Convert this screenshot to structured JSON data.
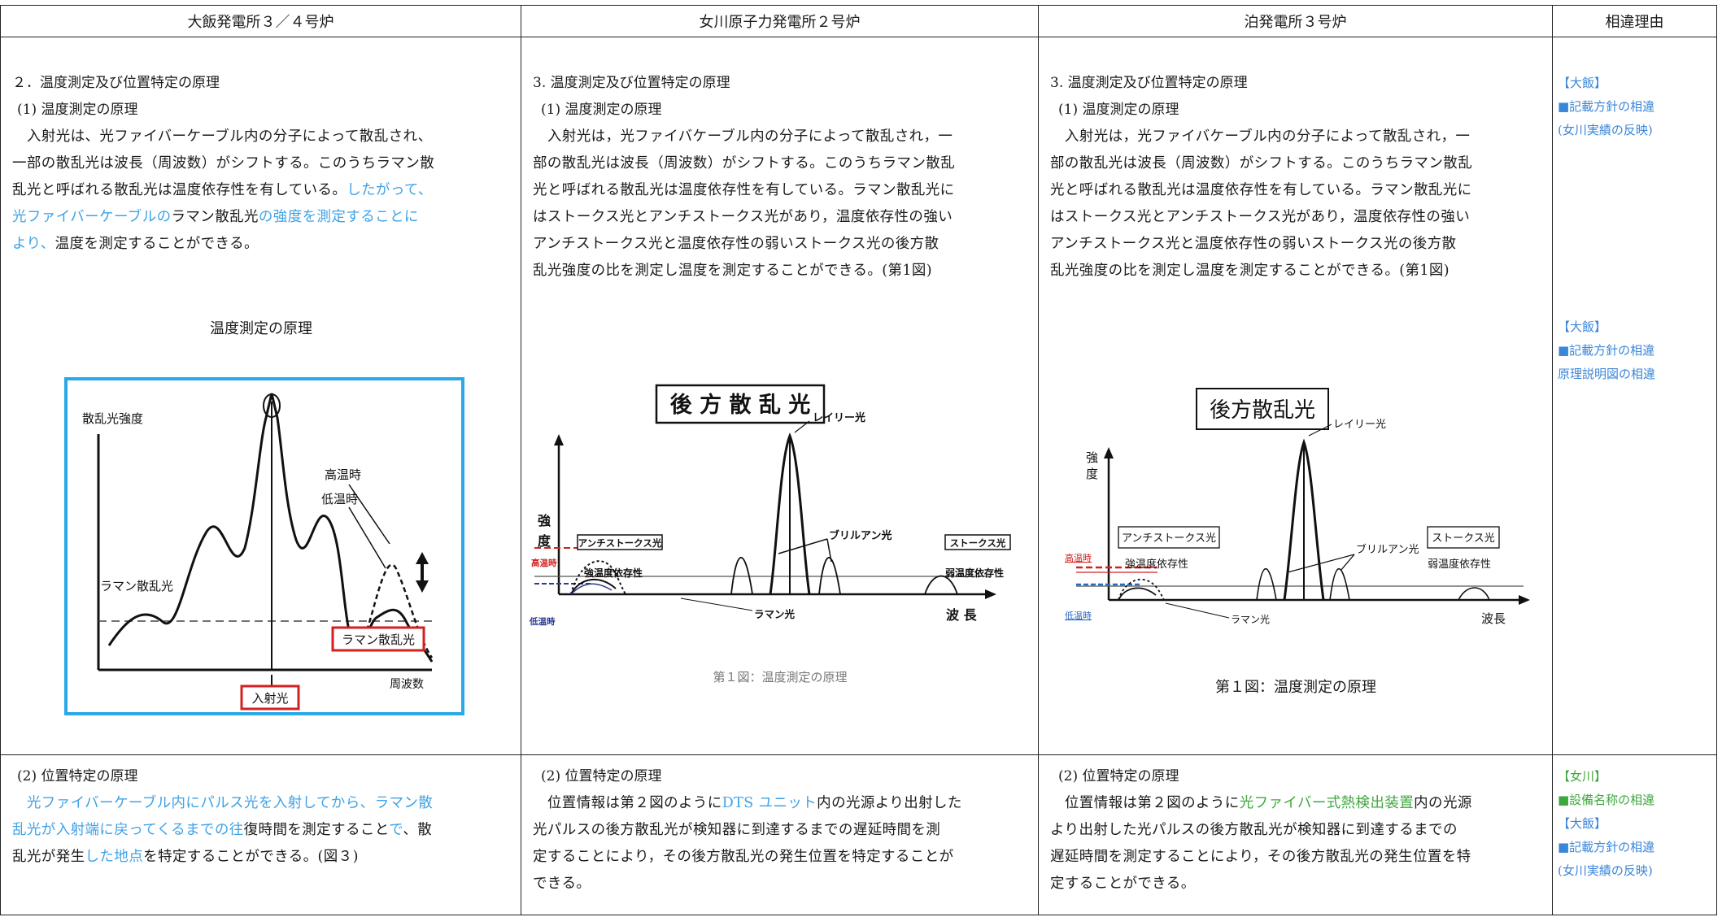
{
  "header": {
    "col1": "大飯発電所３／４号炉",
    "col2": "女川原子力発電所２号炉",
    "col3": "泊発電所３号炉",
    "col4": "相違理由"
  },
  "ohi": {
    "section": "２．温度測定及び位置特定の原理",
    "sub1": "(1) 温度測定の原理",
    "p1_lines": [
      "　入射光は、光ファイバーケーブル内の分子によって散乱され、",
      "一部の散乱光は波長（周波数）がシフトする。このうちラマン散",
      "乱光と呼ばれる散乱光は温度依存性を有している。"
    ],
    "p1_blue_a": "したがって、",
    "p1_blue_b": "光ファイバーケーブルの",
    "p1_black_b": "ラマン散乱光",
    "p1_blue_c": "の強度を測定することに",
    "p1_blue_d": "より、",
    "p1_black_d": "温度を測定することができる。",
    "fig_title": "温度測定の原理",
    "fig_labels": {
      "yaxis": "散乱光強度",
      "high": "高温時",
      "low": "低温時",
      "raman_left": "ラマン散乱光",
      "raman_box": "ラマン散乱光",
      "xaxis": "周波数",
      "incident": "入射光"
    },
    "sub2": "(2) 位置特定の原理",
    "p2_l1_blue": "　光ファイバーケーブル内にパルス光を入射してから、ラマン散",
    "p2_l2_blue_a": "乱光が入射端に戻ってくるまでの往",
    "p2_l2_black": "復時間を測定すること",
    "p2_l2_blue_b": "で",
    "p2_l2_black_b": "、散",
    "p2_l3_black_a": "乱光が発生",
    "p2_l3_blue": "した地点",
    "p2_l3_black_b": "を特定することができる。(図３)"
  },
  "onagawa": {
    "section": "3. 温度測定及び位置特定の原理",
    "sub1": "(1) 温度測定の原理",
    "p1_lines": [
      "　入射光は，光ファイバケーブル内の分子によって散乱され，一",
      "部の散乱光は波長（周波数）がシフトする。このうちラマン散乱",
      "光と呼ばれる散乱光は温度依存性を有している。ラマン散乱光に",
      "はストークス光とアンチストークス光があり，温度依存性の強い",
      "アンチストークス光と温度依存性の弱いストークス光の後方散",
      "乱光強度の比を測定し温度を測定することができる。(第1図)"
    ],
    "fig_labels": {
      "title": "後 方 散 乱 光",
      "rayleigh": "レイリー光",
      "strength": "強",
      "degree": "度",
      "anti": "アンチストークス光",
      "stokes": "ストークス光",
      "high": "高温時",
      "low": "低温時",
      "strong_dep": "強温度依存性",
      "weak_dep": "弱温度依存性",
      "brillouin": "ブリルアン光",
      "raman": "ラマン光",
      "wavelength": "波 長"
    },
    "caption": "第１図：温度測定の原理",
    "sub2": "(2) 位置特定の原理",
    "p2_l1_a": "　位置情報は第２図のように",
    "p2_l1_blue": "DTS ユニット",
    "p2_l1_b": "内の光源より出射した",
    "p2_lines": [
      "光パルスの後方散乱光が検知器に到達するまでの遅延時間を測",
      "定することにより，その後方散乱光の発生位置を特定することが",
      "できる。"
    ]
  },
  "tomari": {
    "section": "3. 温度測定及び位置特定の原理",
    "sub1": "(1) 温度測定の原理",
    "p1_lines": [
      "　入射光は，光ファイバケーブル内の分子によって散乱され，一",
      "部の散乱光は波長（周波数）がシフトする。このうちラマン散乱",
      "光と呼ばれる散乱光は温度依存性を有している。ラマン散乱光に",
      "はストークス光とアンチストークス光があり，温度依存性の強い",
      "アンチストークス光と温度依存性の弱いストークス光の後方散",
      "乱光強度の比を測定し温度を測定することができる。(第1図)"
    ],
    "fig_labels": {
      "title": "後方散乱光",
      "rayleigh": "レイリー光",
      "strength": "強",
      "degree": "度",
      "anti": "アンチストークス光",
      "stokes": "ストークス光",
      "high": "高温時",
      "low": "低温時",
      "strong_dep": "強温度依存性",
      "weak_dep": "弱温度依存性",
      "brillouin": "ブリルアン光",
      "raman": "ラマン光",
      "wavelength": "波長"
    },
    "caption": "第１図：温度測定の原理",
    "sub2": "(2) 位置特定の原理",
    "p2_l1_a": "　位置情報は第２図のように",
    "p2_l1_green": "光ファイバー式熱検出装置",
    "p2_l1_b": "内の光源",
    "p2_lines": [
      "より出射した光パルスの後方散乱光が検知器に到達するまでの",
      "遅延時間を測定することにより，その後方散乱光の発生位置を特",
      "定することができる。"
    ]
  },
  "reasons": {
    "r1_tag": "【大飯】",
    "r1_a": "■記載方針の相違",
    "r1_b": "(女川実績の反映)",
    "r2_tag": "【大飯】",
    "r2_a": "■記載方針の相違",
    "r2_b": "原理説明図の相違",
    "r3_tag": "【女川】",
    "r3_a": "■設備名称の相違",
    "r3_tag2": "【大飯】",
    "r3_b": "■記載方針の相違",
    "r3_c": "(女川実績の反映)"
  }
}
